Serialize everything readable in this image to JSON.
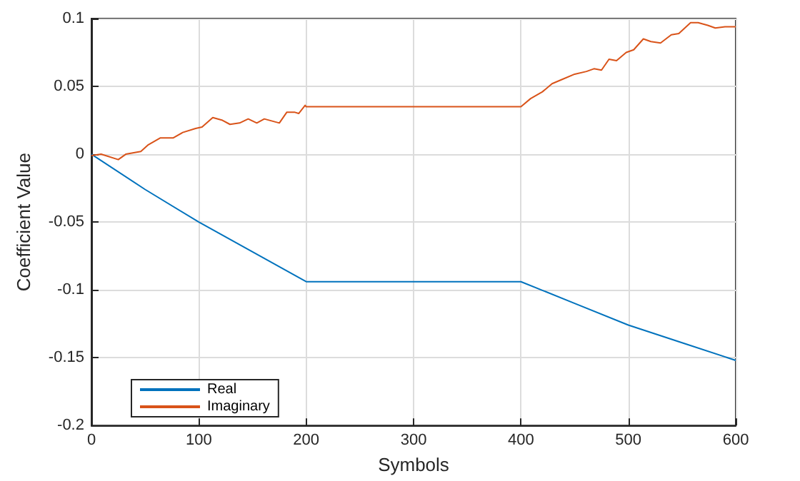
{
  "chart_data": {
    "type": "line",
    "xlabel": "Symbols",
    "ylabel": "Coefficient Value",
    "xlim": [
      0,
      600
    ],
    "xticks": [
      0,
      100,
      200,
      300,
      400,
      500,
      600
    ],
    "ylim": [
      -0.2,
      0.1
    ],
    "yticks": [
      -0.2,
      -0.15,
      -0.1,
      -0.05,
      0,
      0.05,
      0.1
    ],
    "grid": true,
    "legend": "bottom left",
    "marker": "none",
    "line_style": "solid",
    "series": [
      {
        "name": "Real",
        "color": "#0072bd",
        "x": [
          0,
          50,
          100,
          150,
          200,
          400,
          450,
          500,
          550,
          600
        ],
        "values": [
          0,
          -0.026,
          -0.05,
          -0.072,
          -0.094,
          -0.094,
          -0.11,
          -0.126,
          -0.139,
          -0.152
        ]
      },
      {
        "name": "Imaginary",
        "color": "#d95319",
        "x": [
          0,
          9,
          25,
          32,
          46,
          53,
          64,
          76,
          85,
          97,
          103,
          113,
          122,
          129,
          138,
          146,
          154,
          161,
          175,
          182,
          189,
          193,
          199,
          200,
          400,
          409,
          420,
          429,
          438,
          450,
          461,
          468,
          475,
          482,
          489,
          498,
          505,
          514,
          521,
          530,
          540,
          547,
          558,
          565,
          574,
          581,
          590,
          600
        ],
        "values": [
          -0.001,
          0,
          -0.004,
          0,
          0.002,
          0.007,
          0.012,
          0.012,
          0.016,
          0.019,
          0.02,
          0.027,
          0.025,
          0.022,
          0.023,
          0.026,
          0.023,
          0.026,
          0.023,
          0.031,
          0.031,
          0.03,
          0.036,
          0.035,
          0.035,
          0.041,
          0.046,
          0.052,
          0.055,
          0.059,
          0.061,
          0.063,
          0.062,
          0.07,
          0.069,
          0.075,
          0.077,
          0.085,
          0.083,
          0.082,
          0.088,
          0.089,
          0.097,
          0.097,
          0.095,
          0.093,
          0.094,
          0.094
        ]
      }
    ]
  }
}
